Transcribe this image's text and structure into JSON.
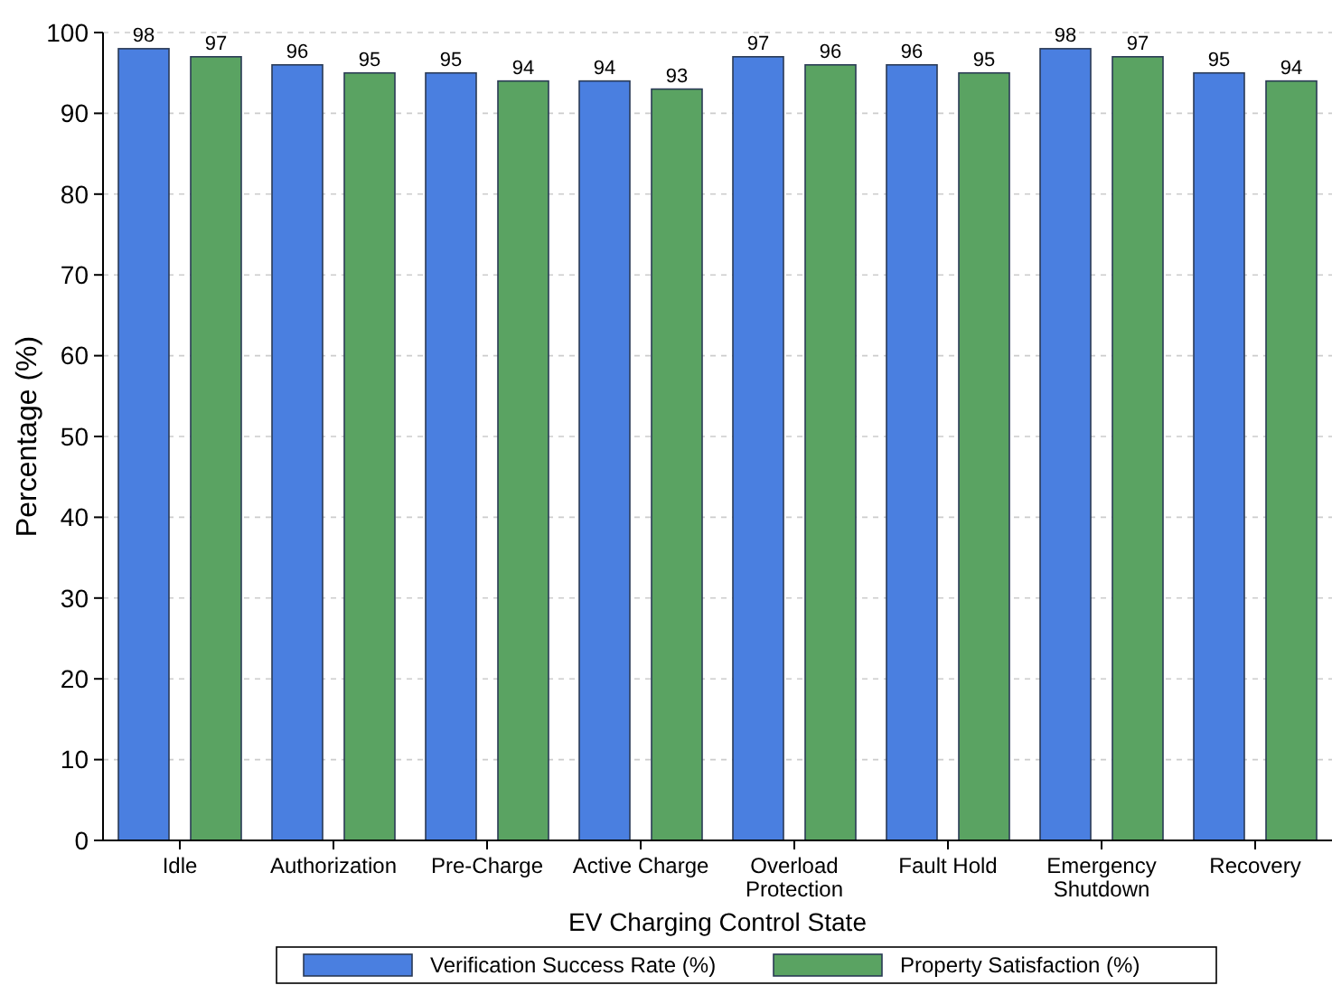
{
  "chart_data": {
    "type": "bar",
    "xlabel": "EV Charging Control State",
    "ylabel": "Percentage (%)",
    "categories": [
      "Idle",
      "Authorization",
      "Pre-Charge",
      "Active Charge",
      "Overload Protection",
      "Fault Hold",
      "Emergency Shutdown",
      "Recovery"
    ],
    "series": [
      {
        "name": "Verification Success Rate (%)",
        "color": "#4a7fe0",
        "values": [
          98,
          96,
          95,
          94,
          97,
          96,
          98,
          95
        ]
      },
      {
        "name": "Property Satisfaction (%)",
        "color": "#5aa362",
        "values": [
          97,
          95,
          94,
          93,
          96,
          95,
          97,
          94
        ]
      }
    ],
    "ylim": [
      0,
      100
    ],
    "yticks": [
      0,
      10,
      20,
      30,
      40,
      50,
      60,
      70,
      80,
      90,
      100
    ],
    "grid": "y",
    "legend": "bottom",
    "data_labels": true
  }
}
